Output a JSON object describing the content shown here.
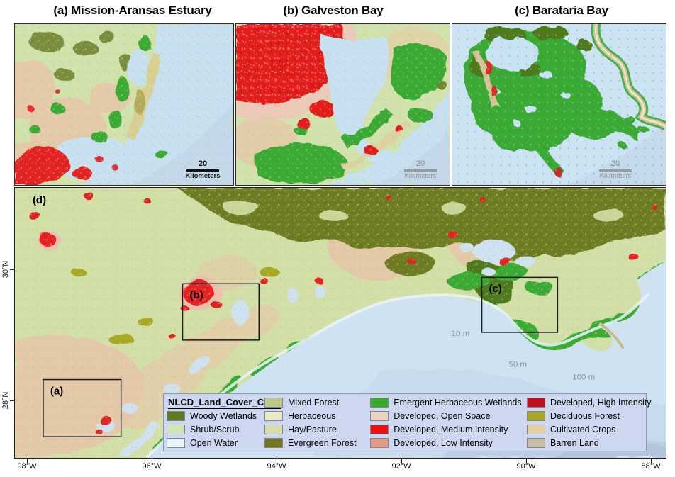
{
  "panels": {
    "a": {
      "title": "(a) Mission-Aransas Estuary",
      "scalebar": {
        "value": "20",
        "unit": "Kilometers"
      }
    },
    "b": {
      "title": "(b) Galveston Bay",
      "scalebar": {
        "value": "20",
        "unit": "Kilometers"
      }
    },
    "c": {
      "title": "(c) Barataria Bay",
      "scalebar": {
        "value": "20",
        "unit": "Kilometers"
      }
    }
  },
  "main_map": {
    "label": "(d)",
    "inset_labels": {
      "a": "(a)",
      "b": "(b)",
      "c": "(c)"
    },
    "depth_labels": {
      "d10": "10 m",
      "d50": "50 m",
      "d100": "100 m"
    },
    "x_axis": [
      "98°W",
      "96°W",
      "94°W",
      "92°W",
      "90°W",
      "88°W"
    ],
    "y_axis": [
      "30°N",
      "28°N"
    ]
  },
  "legend": {
    "title": "NLCD_Land_Cover_Class",
    "columns": [
      {
        "items": [
          {
            "label": "Woody Wetlands",
            "color": "#5e7d20"
          },
          {
            "label": "Shrub/Scrub",
            "color": "#d2e5b3"
          },
          {
            "label": "Open Water",
            "color": "#e8f4fb"
          }
        ]
      },
      {
        "items": [
          {
            "label": "Mixed Forest",
            "color": "#bfc98e"
          },
          {
            "label": "Herbaceous",
            "color": "#ebe8c5"
          },
          {
            "label": "Hay/Pasture",
            "color": "#d7dda6"
          },
          {
            "label": "Evergreen Forest",
            "color": "#73741c"
          }
        ]
      },
      {
        "items": [
          {
            "label": "Emergent Herbaceous Wetlands",
            "color": "#38a82f"
          },
          {
            "label": "Developed, Open Space",
            "color": "#eed2c0"
          },
          {
            "label": "Developed, Medium Intensity",
            "color": "#ee1111"
          },
          {
            "label": "Developed, Low Intensity",
            "color": "#e29a85"
          }
        ]
      },
      {
        "items": [
          {
            "label": "Developed, High Intensity",
            "color": "#bb131f"
          },
          {
            "label": "Deciduous Forest",
            "color": "#a8a820"
          },
          {
            "label": "Cultivated Crops",
            "color": "#e5cfa2"
          },
          {
            "label": "Barren Land",
            "color": "#c7bda7"
          }
        ]
      }
    ]
  }
}
